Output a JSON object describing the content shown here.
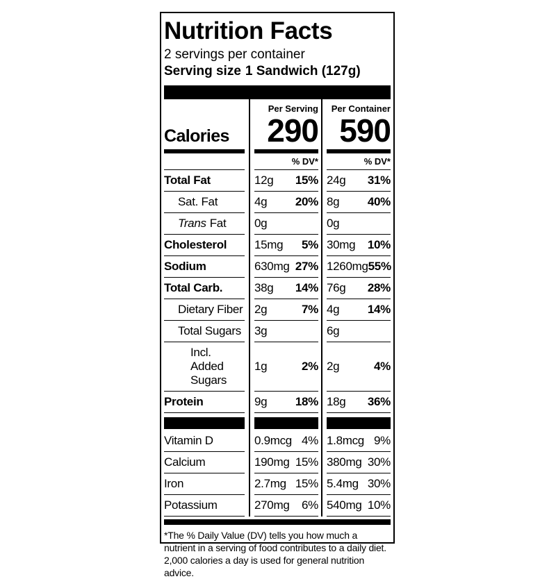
{
  "title": "Nutrition Facts",
  "servings_per_container": "2 servings per container",
  "serving_size": {
    "label": "Serving size",
    "value": "1 Sandwich (127g)"
  },
  "columns": [
    "Per Serving",
    "Per Container"
  ],
  "calories": {
    "label": "Calories",
    "values": [
      290,
      590
    ]
  },
  "dv_header": [
    "% DV*",
    "% DV*"
  ],
  "nutrients": [
    {
      "name": "Total Fat",
      "per_serving": {
        "amount": "12g",
        "dv": "15%"
      },
      "per_container": {
        "amount": "24g",
        "dv": "31%"
      }
    },
    {
      "name": "Sat. Fat",
      "per_serving": {
        "amount": "4g",
        "dv": "20%"
      },
      "per_container": {
        "amount": "8g",
        "dv": "40%"
      }
    },
    {
      "name": [
        "Trans",
        "Fat"
      ],
      "per_serving": {
        "amount": "0g"
      },
      "per_container": {
        "amount": "0g"
      }
    },
    {
      "name": "Cholesterol",
      "per_serving": {
        "amount": "15mg",
        "dv": "5%"
      },
      "per_container": {
        "amount": "30mg",
        "dv": "10%"
      }
    },
    {
      "name": "Sodium",
      "per_serving": {
        "amount": "630mg",
        "dv": "27%"
      },
      "per_container": {
        "amount": "1260mg",
        "dv": "55%"
      }
    },
    {
      "name": "Total Carb.",
      "per_serving": {
        "amount": "38g",
        "dv": "14%"
      },
      "per_container": {
        "amount": "76g",
        "dv": "28%"
      }
    },
    {
      "name": "Dietary Fiber",
      "per_serving": {
        "amount": "2g",
        "dv": "7%"
      },
      "per_container": {
        "amount": "4g",
        "dv": "14%"
      }
    },
    {
      "name": "Total Sugars",
      "per_serving": {
        "amount": "3g"
      },
      "per_container": {
        "amount": "6g"
      }
    },
    {
      "name": "Incl. Added Sugars",
      "per_serving": {
        "amount": "1g",
        "dv": "2%"
      },
      "per_container": {
        "amount": "2g",
        "dv": "4%"
      }
    },
    {
      "name": "Protein",
      "per_serving": {
        "amount": "9g",
        "dv": "18%"
      },
      "per_container": {
        "amount": "18g",
        "dv": "36%"
      }
    }
  ],
  "vitamins": [
    {
      "name": "Vitamin D",
      "per_serving": {
        "amount": "0.9mcg",
        "dv": "4%"
      },
      "per_container": {
        "amount": "1.8mcg",
        "dv": "9%"
      }
    },
    {
      "name": "Calcium",
      "per_serving": {
        "amount": "190mg",
        "dv": "15%"
      },
      "per_container": {
        "amount": "380mg",
        "dv": "30%"
      }
    },
    {
      "name": "Iron",
      "per_serving": {
        "amount": "2.7mg",
        "dv": "15%"
      },
      "per_container": {
        "amount": "5.4mg",
        "dv": "30%"
      }
    },
    {
      "name": "Potassium",
      "per_serving": {
        "amount": "270mg",
        "dv": "6%"
      },
      "per_container": {
        "amount": "540mg",
        "dv": "10%"
      }
    }
  ],
  "footnote": "*The % Daily Value (DV) tells you how much a nutrient in a serving of food contributes to a daily diet. 2,000 calories a day is used for general nutrition advice."
}
